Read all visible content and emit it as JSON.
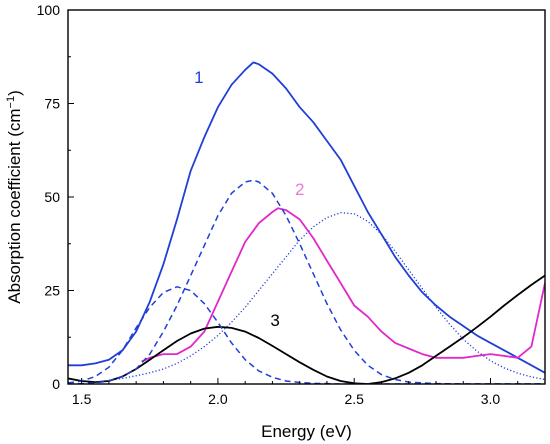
{
  "chart_data": {
    "type": "line",
    "xlabel": "Energy (eV)",
    "ylabel": "Absorption coefficient (cm",
    "ylabel_sup": "−1",
    "ylabel_close": ")",
    "xlim": [
      1.45,
      3.2
    ],
    "ylim": [
      0,
      100
    ],
    "xticks": [
      1.5,
      2.0,
      2.5,
      3.0
    ],
    "xtick_labels": [
      "1.5",
      "2.0",
      "2.5",
      "3.0"
    ],
    "yticks": [
      0,
      25,
      50,
      75,
      100
    ],
    "ytick_labels": [
      "0",
      "25",
      "50",
      "75",
      "100"
    ],
    "grid": false,
    "legend": "none",
    "series": [
      {
        "label": "1",
        "style": "solid",
        "color": "#1f3fd6",
        "x": [
          1.45,
          1.5,
          1.55,
          1.6,
          1.65,
          1.7,
          1.75,
          1.8,
          1.85,
          1.9,
          1.95,
          2.0,
          2.05,
          2.1,
          2.13,
          2.15,
          2.2,
          2.25,
          2.3,
          2.35,
          2.4,
          2.45,
          2.5,
          2.55,
          2.6,
          2.65,
          2.7,
          2.75,
          2.8,
          2.85,
          2.9,
          2.95,
          3.0,
          3.05,
          3.1,
          3.15,
          3.2
        ],
        "y": [
          5,
          5,
          5.5,
          6.5,
          9,
          14,
          22,
          32,
          44,
          57,
          66,
          74,
          80,
          84,
          86,
          85.5,
          83,
          79,
          74,
          70,
          65,
          60,
          53,
          46,
          40,
          34,
          29,
          24.5,
          21,
          18,
          15.5,
          13,
          11,
          9,
          7,
          5,
          3
        ]
      },
      {
        "label": "2",
        "style": "solid",
        "color": "#e029c8",
        "x": [
          1.72,
          1.75,
          1.8,
          1.85,
          1.9,
          1.95,
          2.0,
          2.05,
          2.1,
          2.15,
          2.2,
          2.22,
          2.25,
          2.3,
          2.35,
          2.4,
          2.45,
          2.5,
          2.55,
          2.6,
          2.65,
          2.7,
          2.75,
          2.8,
          2.85,
          2.9,
          2.95,
          3.0,
          3.05,
          3.1,
          3.15,
          3.2
        ],
        "y": [
          6,
          7,
          8,
          8,
          10,
          14,
          22,
          30,
          38,
          43,
          46,
          47,
          46.5,
          44,
          39,
          33,
          27,
          21,
          18,
          14,
          11,
          9.5,
          8,
          7,
          7,
          7,
          7.5,
          8,
          7.5,
          7,
          10,
          27
        ]
      },
      {
        "label": "3",
        "style": "solid",
        "color": "#000000",
        "x": [
          1.45,
          1.5,
          1.55,
          1.6,
          1.65,
          1.7,
          1.75,
          1.8,
          1.85,
          1.9,
          1.95,
          2.0,
          2.05,
          2.1,
          2.15,
          2.2,
          2.25,
          2.3,
          2.35,
          2.4,
          2.45,
          2.5,
          2.55,
          2.6,
          2.65,
          2.7,
          2.75,
          2.8,
          2.85,
          2.9,
          2.95,
          3.0,
          3.05,
          3.1,
          3.15,
          3.2
        ],
        "y": [
          1.5,
          0.8,
          0.5,
          0.8,
          2,
          4,
          6.5,
          9,
          11.5,
          13.5,
          14.8,
          15.3,
          15,
          14,
          12.3,
          10.2,
          8,
          5.8,
          3.8,
          2,
          0.8,
          0.2,
          0,
          0.5,
          1.5,
          3,
          5,
          7.5,
          10,
          12.5,
          15.2,
          18,
          21,
          23.8,
          26.5,
          29
        ]
      },
      {
        "label": "",
        "style": "dashed",
        "color": "#1f3fd6",
        "x": [
          1.45,
          1.5,
          1.55,
          1.6,
          1.65,
          1.7,
          1.75,
          1.8,
          1.85,
          1.9,
          1.95,
          2.0,
          2.05,
          2.1,
          2.15,
          2.2,
          2.25,
          2.3,
          2.35,
          2.4,
          2.45,
          2.5,
          2.55,
          2.6,
          2.7,
          2.8,
          3.0,
          3.2
        ],
        "y": [
          0.3,
          0.8,
          2,
          4.5,
          9,
          15,
          20.5,
          24.5,
          26,
          25,
          21.5,
          16.5,
          11,
          6.5,
          3.5,
          1.8,
          0.8,
          0.4,
          0.2,
          0.1,
          0,
          0,
          0,
          0,
          0,
          0,
          0,
          0
        ]
      },
      {
        "label": "",
        "style": "dashed",
        "color": "#1f3fd6",
        "x": [
          1.45,
          1.5,
          1.55,
          1.6,
          1.65,
          1.7,
          1.75,
          1.8,
          1.85,
          1.9,
          1.95,
          2.0,
          2.05,
          2.1,
          2.13,
          2.15,
          2.2,
          2.25,
          2.3,
          2.35,
          2.4,
          2.45,
          2.5,
          2.55,
          2.6,
          2.65,
          2.7,
          2.8,
          2.9,
          3.0,
          3.2
        ],
        "y": [
          0,
          0.1,
          0.3,
          0.8,
          2,
          4,
          8,
          14,
          21,
          29,
          37,
          45,
          51,
          54,
          54.5,
          54,
          51,
          45,
          37.5,
          29.5,
          21.5,
          14.5,
          9,
          5,
          2.5,
          1.2,
          0.5,
          0.1,
          0,
          0,
          0
        ]
      },
      {
        "label": "",
        "style": "dotted",
        "color": "#1f3fd6",
        "x": [
          1.55,
          1.6,
          1.65,
          1.7,
          1.75,
          1.8,
          1.85,
          1.9,
          1.95,
          2.0,
          2.05,
          2.1,
          2.15,
          2.2,
          2.25,
          2.3,
          2.35,
          2.4,
          2.45,
          2.5,
          2.55,
          2.6,
          2.65,
          2.7,
          2.75,
          2.8,
          2.85,
          2.9,
          2.95,
          3.0,
          3.05,
          3.1,
          3.15,
          3.2
        ],
        "y": [
          0.5,
          1,
          1.5,
          2.2,
          3,
          4,
          5.5,
          7.5,
          10,
          13,
          16.5,
          20.5,
          25,
          29.5,
          34,
          38.5,
          42,
          44.5,
          45.8,
          45.5,
          43.5,
          40,
          35.5,
          30.5,
          25.5,
          20.5,
          16,
          12,
          8.8,
          6.2,
          4.3,
          2.9,
          1.9,
          1.2
        ]
      }
    ],
    "annotations": [
      {
        "text": "1",
        "x": 1.93,
        "y": 80.5,
        "color": "#1f3fd6"
      },
      {
        "text": "2",
        "x": 2.3,
        "y": 50.5,
        "color": "#e87ad6"
      },
      {
        "text": "3",
        "x": 2.21,
        "y": 15.5,
        "color": "#000000"
      }
    ]
  }
}
